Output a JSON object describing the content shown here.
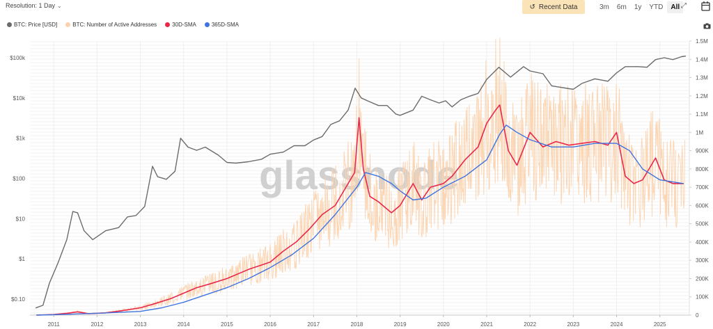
{
  "toolbar": {
    "resolution_label": "Resolution: 1 Day",
    "recent_data_label": "Recent Data",
    "ranges": [
      "3m",
      "6m",
      "1y",
      "YTD",
      "All"
    ],
    "active_range": "All"
  },
  "legend": {
    "items": [
      {
        "label": "BTC: Price [USD]",
        "color": "#6b6b6b"
      },
      {
        "label": "BTC: Number of Active Addresses",
        "color": "#fbd2ad"
      },
      {
        "label": "30D-SMA",
        "color": "#e8284b"
      },
      {
        "label": "365D-SMA",
        "color": "#3f73e0"
      }
    ]
  },
  "watermark": "glassnode",
  "chart_data": {
    "type": "line",
    "title": "",
    "x_ticks": [
      "2011",
      "2012",
      "2013",
      "2014",
      "2015",
      "2016",
      "2017",
      "2018",
      "2019",
      "2020",
      "2021",
      "2022",
      "2023",
      "2024",
      "2025"
    ],
    "y_left": {
      "label": "",
      "scale": "log",
      "ticks": [
        "$0.10",
        "$1",
        "$10",
        "$100",
        "$1k",
        "$10k",
        "$100k"
      ],
      "tick_values": [
        0.1,
        1,
        10,
        100,
        1000,
        10000,
        100000
      ]
    },
    "y_right": {
      "label": "",
      "scale": "linear",
      "ticks": [
        "0",
        "100K",
        "200K",
        "300K",
        "400K",
        "500K",
        "600K",
        "700K",
        "800K",
        "900K",
        "1M",
        "1.1M",
        "1.2M",
        "1.3M",
        "1.4M",
        "1.5M"
      ],
      "range": [
        0,
        1500000
      ]
    },
    "series": [
      {
        "name": "BTC: Price [USD]",
        "axis": "left",
        "color": "#6b6b6b",
        "x": [
          2010.58,
          2010.75,
          2010.9,
          2011.1,
          2011.3,
          2011.44,
          2011.55,
          2011.7,
          2011.9,
          2012.2,
          2012.5,
          2012.7,
          2012.9,
          2013.1,
          2013.28,
          2013.4,
          2013.6,
          2013.8,
          2013.93,
          2014.1,
          2014.3,
          2014.5,
          2014.8,
          2015.0,
          2015.2,
          2015.5,
          2015.8,
          2016.0,
          2016.3,
          2016.55,
          2016.8,
          2017.0,
          2017.2,
          2017.4,
          2017.6,
          2017.8,
          2017.96,
          2018.1,
          2018.3,
          2018.5,
          2018.7,
          2018.9,
          2019.0,
          2019.3,
          2019.5,
          2019.7,
          2019.9,
          2020.05,
          2020.2,
          2020.4,
          2020.6,
          2020.8,
          2021.0,
          2021.28,
          2021.55,
          2021.85,
          2022.0,
          2022.3,
          2022.5,
          2022.9,
          2023.0,
          2023.2,
          2023.5,
          2023.8,
          2024.0,
          2024.2,
          2024.5,
          2024.7,
          2024.9,
          2025.1,
          2025.3,
          2025.5,
          2025.6
        ],
        "y": [
          0.06,
          0.07,
          0.25,
          0.8,
          3,
          15,
          14,
          5,
          3,
          5,
          6,
          11,
          12,
          20,
          200,
          110,
          95,
          150,
          1000,
          600,
          500,
          600,
          380,
          250,
          240,
          260,
          300,
          400,
          450,
          650,
          650,
          900,
          1100,
          2200,
          2700,
          5000,
          17500,
          10000,
          8000,
          6500,
          6500,
          4000,
          3700,
          5000,
          11000,
          9000,
          7500,
          8500,
          6000,
          9000,
          11000,
          13000,
          29000,
          58000,
          33000,
          60000,
          47000,
          40000,
          20000,
          17000,
          16500,
          23000,
          30000,
          26000,
          42000,
          60000,
          60000,
          58000,
          90000,
          100000,
          90000,
          106000,
          110000
        ]
      },
      {
        "name": "30D-SMA",
        "axis": "right",
        "color": "#e8284b",
        "x": [
          2010.6,
          2011.0,
          2011.3,
          2011.55,
          2011.8,
          2012.2,
          2012.6,
          2013.0,
          2013.3,
          2013.7,
          2014.0,
          2014.3,
          2014.6,
          2015.0,
          2015.5,
          2016.0,
          2016.3,
          2016.6,
          2016.9,
          2017.2,
          2017.5,
          2017.7,
          2017.95,
          2018.05,
          2018.15,
          2018.3,
          2018.5,
          2018.8,
          2019.0,
          2019.3,
          2019.5,
          2019.7,
          2020.0,
          2020.2,
          2020.5,
          2020.8,
          2021.0,
          2021.2,
          2021.3,
          2021.5,
          2021.7,
          2022.0,
          2022.3,
          2022.6,
          2022.9,
          2023.2,
          2023.5,
          2023.8,
          2024.0,
          2024.2,
          2024.4,
          2024.6,
          2024.9,
          2025.1,
          2025.3,
          2025.55
        ],
        "y": [
          0,
          3000,
          10000,
          18000,
          8000,
          12000,
          25000,
          40000,
          60000,
          90000,
          120000,
          150000,
          170000,
          200000,
          250000,
          290000,
          350000,
          400000,
          470000,
          550000,
          600000,
          680000,
          780000,
          1080000,
          800000,
          650000,
          620000,
          560000,
          600000,
          720000,
          630000,
          700000,
          720000,
          760000,
          850000,
          920000,
          1050000,
          1120000,
          1150000,
          900000,
          820000,
          1000000,
          920000,
          950000,
          930000,
          940000,
          950000,
          930000,
          1000000,
          760000,
          720000,
          740000,
          860000,
          740000,
          720000,
          720000
        ]
      },
      {
        "name": "365D-SMA",
        "axis": "right",
        "color": "#3f73e0",
        "x": [
          2010.6,
          2011.0,
          2011.5,
          2012.0,
          2012.5,
          2013.0,
          2013.5,
          2014.0,
          2014.5,
          2015.0,
          2015.5,
          2016.0,
          2016.5,
          2017.0,
          2017.5,
          2018.0,
          2018.2,
          2018.5,
          2018.8,
          2019.0,
          2019.3,
          2019.6,
          2020.0,
          2020.5,
          2021.0,
          2021.3,
          2021.45,
          2021.7,
          2022.0,
          2022.5,
          2023.0,
          2023.5,
          2024.0,
          2024.3,
          2024.6,
          2025.0,
          2025.55
        ],
        "y": [
          0,
          2000,
          6000,
          10000,
          15000,
          20000,
          40000,
          70000,
          110000,
          150000,
          200000,
          260000,
          330000,
          420000,
          550000,
          700000,
          780000,
          760000,
          720000,
          680000,
          630000,
          640000,
          700000,
          760000,
          850000,
          990000,
          1040000,
          1000000,
          960000,
          920000,
          920000,
          940000,
          940000,
          900000,
          800000,
          740000,
          720000
        ]
      }
    ]
  }
}
